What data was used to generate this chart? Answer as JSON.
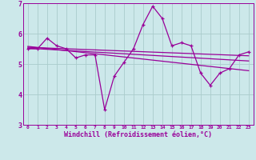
{
  "xlabel": "Windchill (Refroidissement éolien,°C)",
  "bg_color": "#cce8ea",
  "line_color": "#990099",
  "grid_color": "#aacccc",
  "xlim": [
    -0.5,
    23.5
  ],
  "ylim": [
    3,
    7
  ],
  "yticks": [
    3,
    4,
    5,
    6,
    7
  ],
  "xticks": [
    0,
    1,
    2,
    3,
    4,
    5,
    6,
    7,
    8,
    9,
    10,
    11,
    12,
    13,
    14,
    15,
    16,
    17,
    18,
    19,
    20,
    21,
    22,
    23
  ],
  "hours": [
    0,
    1,
    2,
    3,
    4,
    5,
    6,
    7,
    8,
    9,
    10,
    11,
    12,
    13,
    14,
    15,
    16,
    17,
    18,
    19,
    20,
    21,
    22,
    23
  ],
  "windchill": [
    5.5,
    5.5,
    5.85,
    5.6,
    5.5,
    5.2,
    5.3,
    5.3,
    3.5,
    4.6,
    5.05,
    5.5,
    6.3,
    6.9,
    6.5,
    5.6,
    5.7,
    5.6,
    4.7,
    4.3,
    4.7,
    4.85,
    5.3,
    5.4
  ],
  "trend_top_start": 5.55,
  "trend_top_end": 5.27,
  "trend_mid_start": 5.52,
  "trend_mid_end": 5.1,
  "trend_bot_start": 5.58,
  "trend_bot_end": 4.78
}
